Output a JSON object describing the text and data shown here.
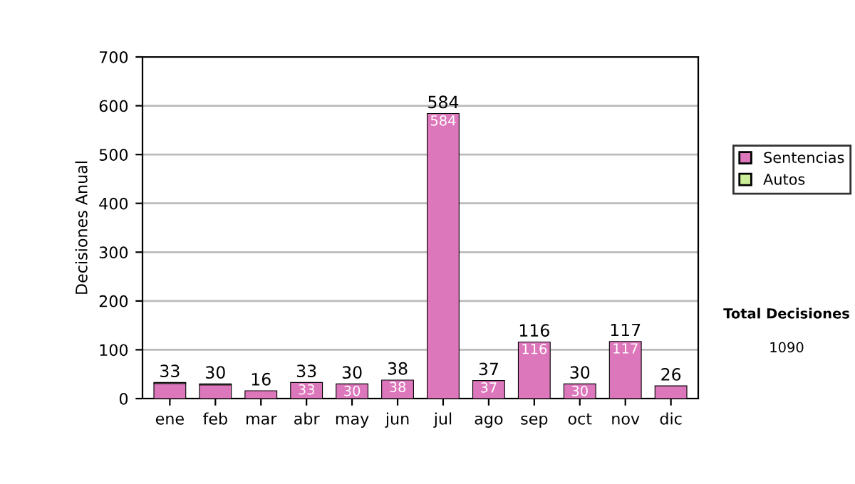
{
  "chart_data": {
    "type": "bar",
    "stacked": true,
    "ylabel": "Decisiones Anual",
    "categories": [
      "ene",
      "feb",
      "mar",
      "abr",
      "may",
      "jun",
      "jul",
      "ago",
      "sep",
      "oct",
      "nov",
      "dic"
    ],
    "series": [
      {
        "name": "Sentencias",
        "color": "#dd77bb",
        "values": [
          31,
          28,
          16,
          33,
          30,
          38,
          584,
          37,
          116,
          30,
          117,
          26
        ],
        "value_labels": [
          null,
          null,
          null,
          "33",
          "30",
          "38",
          "584",
          "37",
          "116",
          "30",
          "117",
          null
        ]
      },
      {
        "name": "Autos",
        "color": "#ccee99",
        "values": [
          2,
          2,
          null,
          null,
          null,
          null,
          null,
          null,
          null,
          null,
          null,
          null
        ]
      }
    ],
    "totals": [
      "33",
      "30",
      "16",
      "33",
      "30",
      "38",
      "584",
      "37",
      "116",
      "30",
      "117",
      "26"
    ],
    "ylim": [
      0,
      700
    ],
    "yticks": [
      0,
      100,
      200,
      300,
      400,
      500,
      600,
      700
    ],
    "grid": "y",
    "legend": "right",
    "annotations": [
      "Total Decisiones",
      "1090"
    ]
  }
}
